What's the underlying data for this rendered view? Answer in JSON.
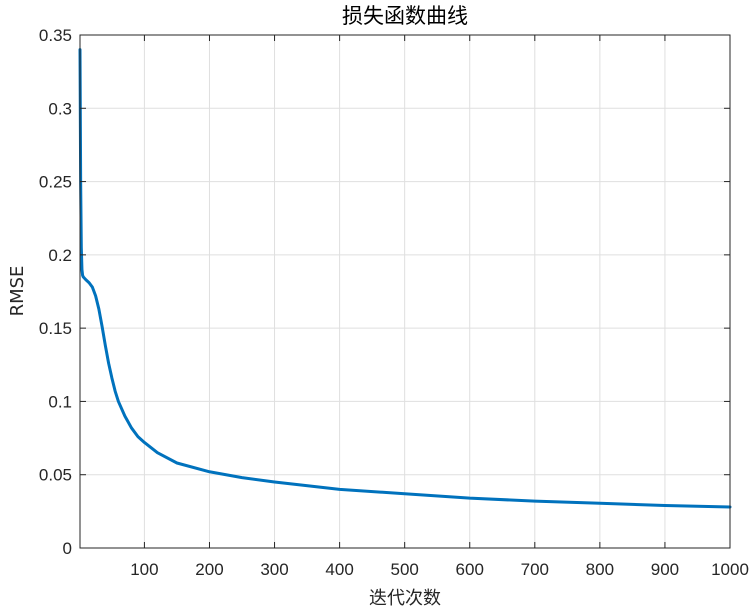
{
  "chart_data": {
    "type": "line",
    "title": "损失函数曲线",
    "xlabel": "迭代次数",
    "ylabel": "RMSE",
    "xlim": [
      1,
      1000
    ],
    "ylim": [
      0,
      0.35
    ],
    "grid": true,
    "line_color": "#0072BD",
    "x_ticks": [
      100,
      200,
      300,
      400,
      500,
      600,
      700,
      800,
      900,
      1000
    ],
    "x_tick_labels": [
      "100",
      "200",
      "300",
      "400",
      "500",
      "600",
      "700",
      "800",
      "900",
      "1000"
    ],
    "y_ticks": [
      0,
      0.05,
      0.1,
      0.15,
      0.2,
      0.25,
      0.3,
      0.35
    ],
    "y_tick_labels": [
      "0",
      "0.05",
      "0.1",
      "0.15",
      "0.2",
      "0.25",
      "0.3",
      "0.35"
    ],
    "series": [
      {
        "x": [
          1,
          2,
          3,
          4,
          5,
          6,
          8,
          10,
          15,
          20,
          25,
          30,
          35,
          40,
          45,
          50,
          55,
          60,
          70,
          80,
          90,
          100,
          120,
          150,
          200,
          250,
          300,
          400,
          500,
          600,
          700,
          800,
          900,
          1000
        ],
        "y": [
          0.34,
          0.25,
          0.205,
          0.19,
          0.186,
          0.185,
          0.184,
          0.183,
          0.181,
          0.178,
          0.172,
          0.163,
          0.151,
          0.138,
          0.126,
          0.116,
          0.107,
          0.1,
          0.09,
          0.082,
          0.076,
          0.072,
          0.065,
          0.058,
          0.052,
          0.048,
          0.045,
          0.04,
          0.037,
          0.034,
          0.032,
          0.0305,
          0.029,
          0.028
        ]
      }
    ]
  }
}
